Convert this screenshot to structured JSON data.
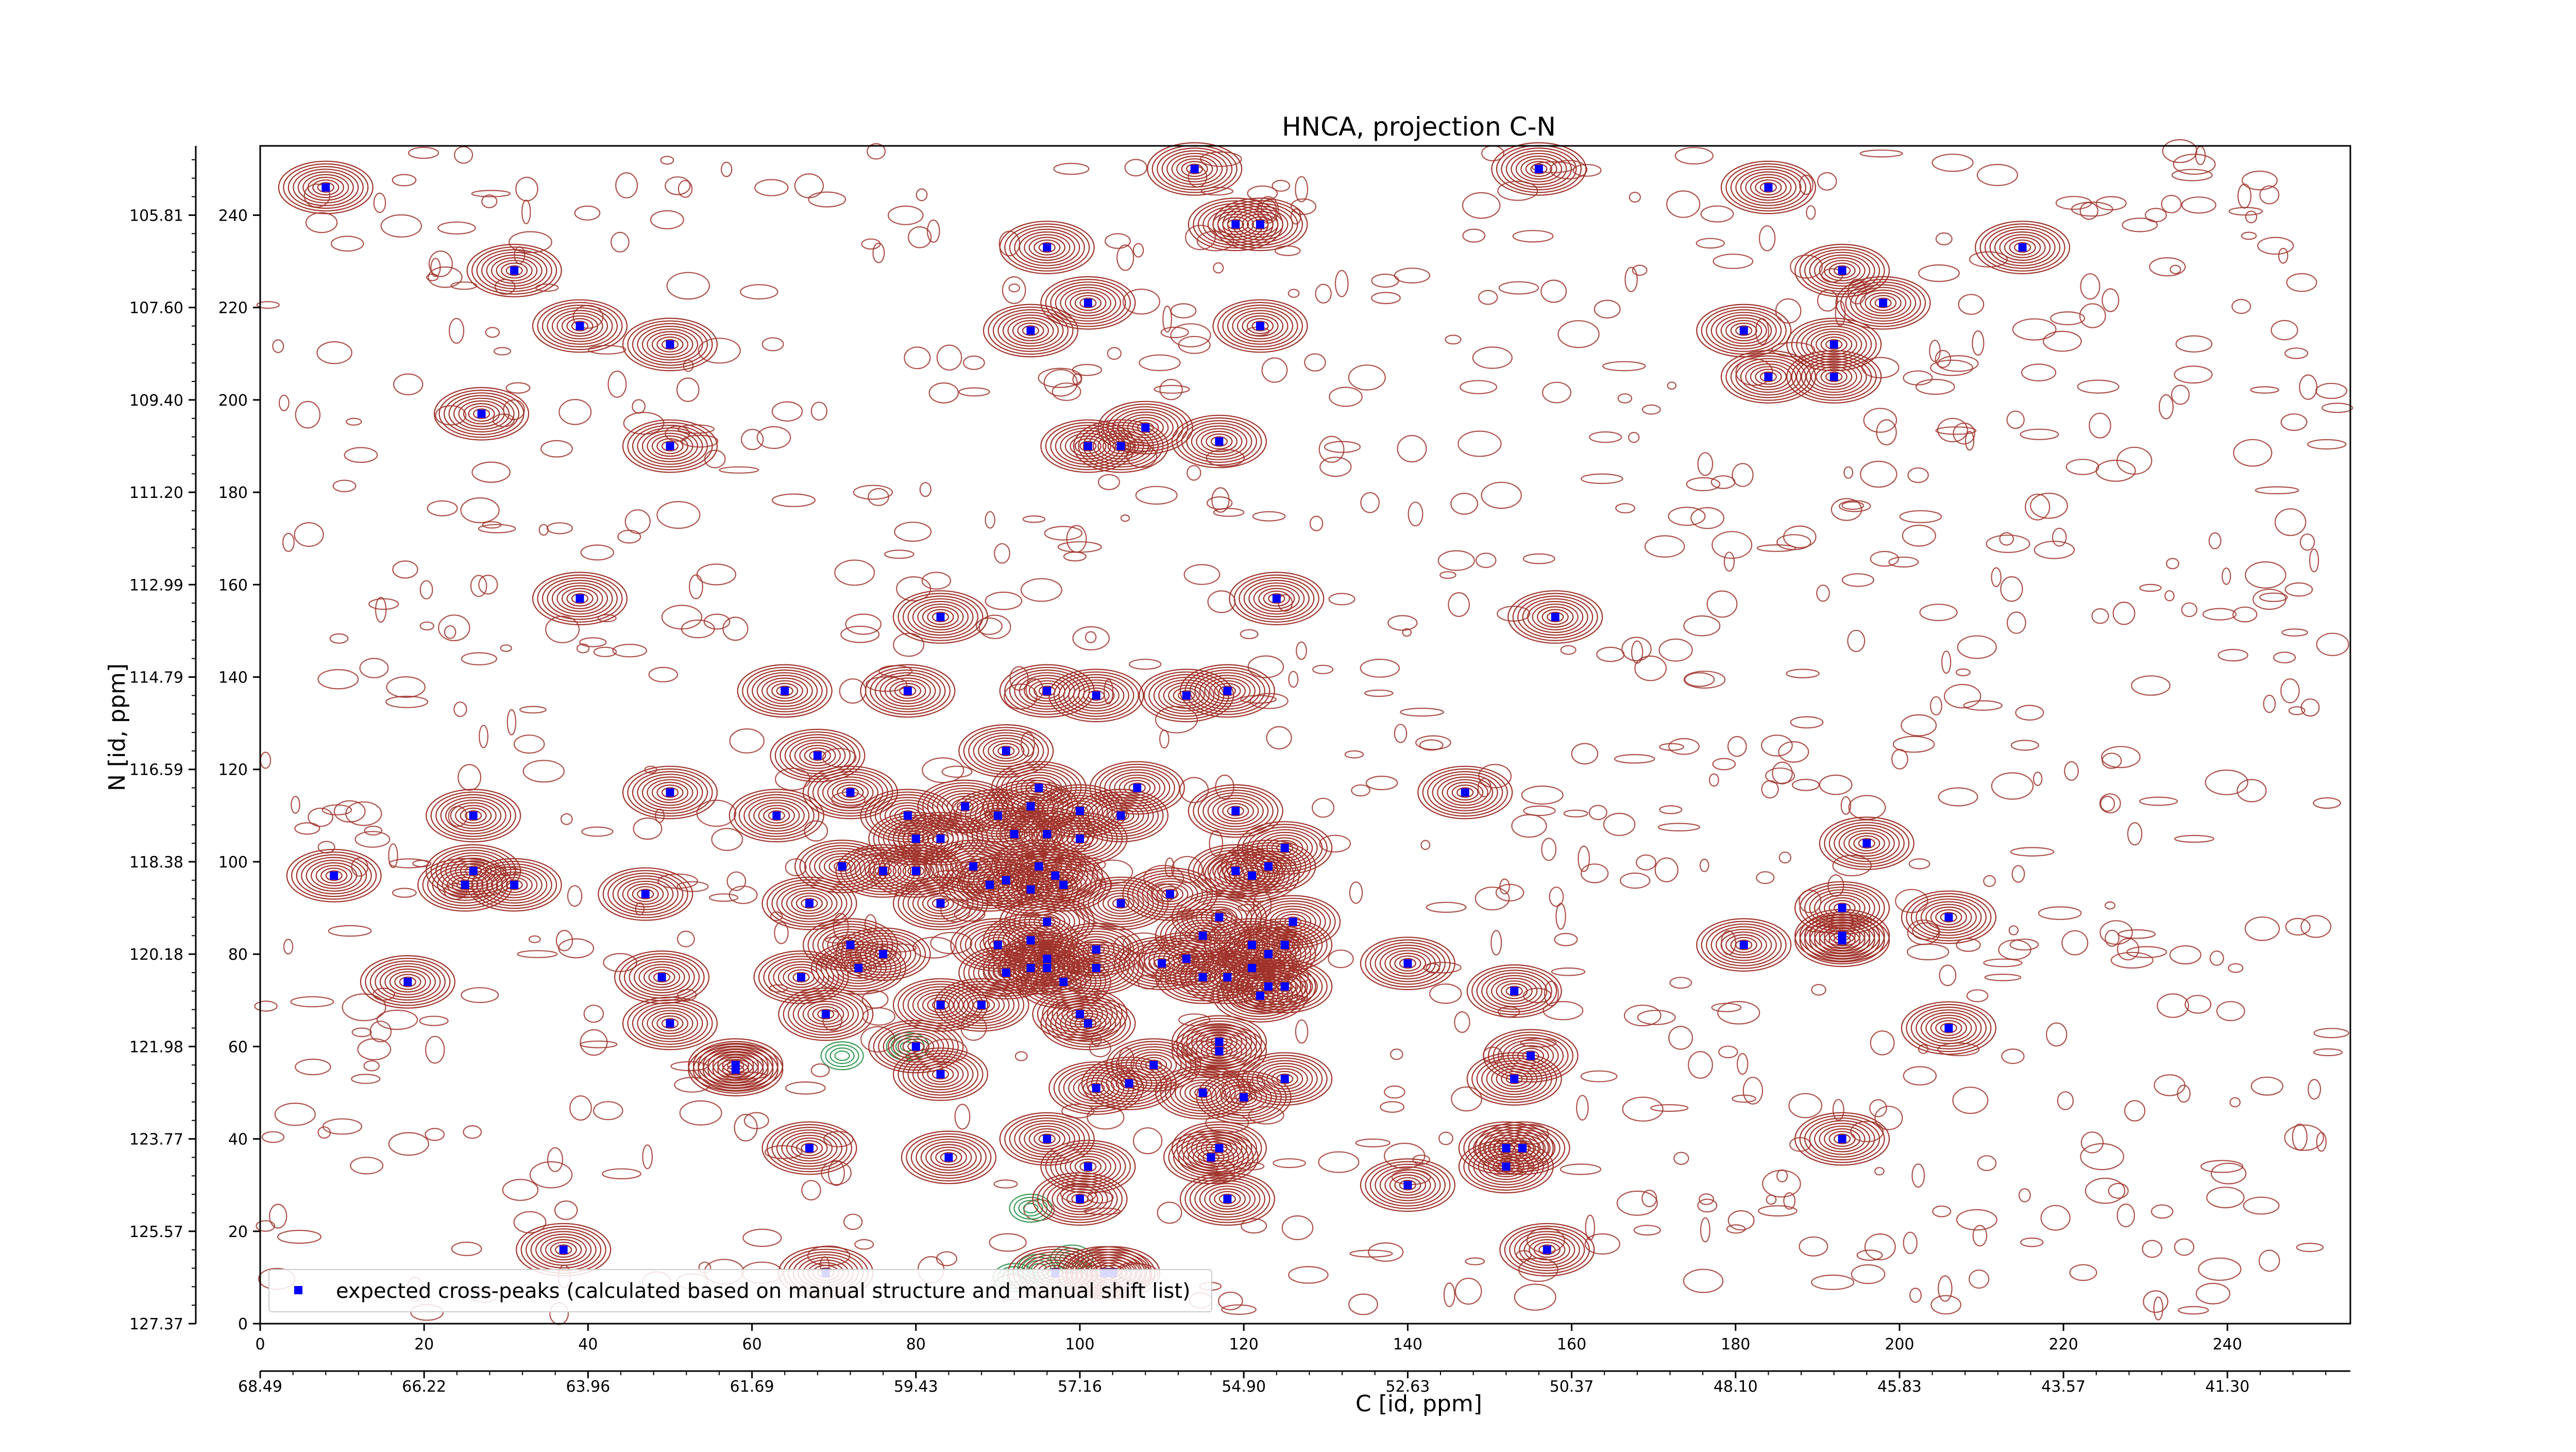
{
  "chart_data": {
    "type": "scatter",
    "title": "HNCA, projection C-N",
    "xlabel_top_axis": "",
    "xlabel": "C [id, ppm]",
    "ylabel": "N [id, ppm]",
    "x_index_ticks": [
      "0",
      "20",
      "40",
      "60",
      "80",
      "100",
      "120",
      "140",
      "160",
      "180",
      "200",
      "220",
      "240"
    ],
    "x_ppm_ticks": [
      "68.49",
      "66.22",
      "63.96",
      "61.69",
      "59.43",
      "57.16",
      "54.90",
      "52.63",
      "50.37",
      "48.10",
      "45.83",
      "43.57",
      "41.30"
    ],
    "y_index_ticks": [
      "0",
      "20",
      "40",
      "60",
      "80",
      "100",
      "120",
      "140",
      "160",
      "180",
      "200",
      "220",
      "240"
    ],
    "y_ppm_ticks": [
      "127.37",
      "125.57",
      "123.77",
      "121.98",
      "120.18",
      "118.38",
      "116.59",
      "114.79",
      "112.99",
      "111.20",
      "109.40",
      "107.60",
      "105.81"
    ],
    "xlim": [
      0,
      255
    ],
    "ylim": [
      0,
      255
    ],
    "contour_colors": {
      "positive": "#a0332b",
      "negative": "#3a9a56"
    },
    "marker_color": "#0000ff",
    "legend": {
      "label": "expected cross-peaks (calculated based on manual structure and manual shift list)",
      "position": "lower-left"
    },
    "series": [
      {
        "name": "expected cross-peaks (calculated based on manual structure and manual shift list)",
        "points": [
          [
            8,
            246
          ],
          [
            114,
            250
          ],
          [
            156,
            250
          ],
          [
            184,
            246
          ],
          [
            119,
            238
          ],
          [
            122,
            238
          ],
          [
            215,
            233
          ],
          [
            96,
            233
          ],
          [
            31,
            228
          ],
          [
            193,
            228
          ],
          [
            101,
            221
          ],
          [
            198,
            221
          ],
          [
            39,
            216
          ],
          [
            94,
            215
          ],
          [
            122,
            216
          ],
          [
            181,
            215
          ],
          [
            50,
            212
          ],
          [
            192,
            212
          ],
          [
            184,
            205
          ],
          [
            192,
            205
          ],
          [
            27,
            197
          ],
          [
            50,
            190
          ],
          [
            101,
            190
          ],
          [
            105,
            190
          ],
          [
            108,
            194
          ],
          [
            117,
            191
          ],
          [
            39,
            157
          ],
          [
            124,
            157
          ],
          [
            83,
            153
          ],
          [
            158,
            153
          ],
          [
            64,
            137
          ],
          [
            79,
            137
          ],
          [
            96,
            137
          ],
          [
            102,
            136
          ],
          [
            113,
            136
          ],
          [
            118,
            137
          ],
          [
            68,
            123
          ],
          [
            91,
            124
          ],
          [
            50,
            115
          ],
          [
            95,
            116
          ],
          [
            107,
            116
          ],
          [
            147,
            115
          ],
          [
            26,
            110
          ],
          [
            63,
            110
          ],
          [
            72,
            115
          ],
          [
            79,
            110
          ],
          [
            86,
            112
          ],
          [
            90,
            110
          ],
          [
            94,
            112
          ],
          [
            100,
            111
          ],
          [
            105,
            110
          ],
          [
            119,
            111
          ],
          [
            80,
            105
          ],
          [
            83,
            105
          ],
          [
            92,
            106
          ],
          [
            96,
            106
          ],
          [
            100,
            105
          ],
          [
            125,
            103
          ],
          [
            196,
            104
          ],
          [
            9,
            97
          ],
          [
            26,
            98
          ],
          [
            25,
            95
          ],
          [
            31,
            95
          ],
          [
            71,
            99
          ],
          [
            76,
            98
          ],
          [
            80,
            98
          ],
          [
            87,
            99
          ],
          [
            95,
            99
          ],
          [
            97,
            97
          ],
          [
            91,
            96
          ],
          [
            89,
            95
          ],
          [
            94,
            94
          ],
          [
            98,
            95
          ],
          [
            111,
            93
          ],
          [
            119,
            98
          ],
          [
            121,
            97
          ],
          [
            123,
            99
          ],
          [
            47,
            93
          ],
          [
            83,
            91
          ],
          [
            67,
            91
          ],
          [
            105,
            91
          ],
          [
            117,
            88
          ],
          [
            126,
            87
          ],
          [
            193,
            90
          ],
          [
            206,
            88
          ],
          [
            96,
            87
          ],
          [
            94,
            83
          ],
          [
            90,
            82
          ],
          [
            102,
            81
          ],
          [
            113,
            79
          ],
          [
            115,
            84
          ],
          [
            121,
            82
          ],
          [
            125,
            82
          ],
          [
            193,
            84
          ],
          [
            193,
            83
          ],
          [
            72,
            82
          ],
          [
            73,
            77
          ],
          [
            66,
            75
          ],
          [
            94,
            77
          ],
          [
            96,
            77
          ],
          [
            96,
            79
          ],
          [
            91,
            76
          ],
          [
            98,
            74
          ],
          [
            102,
            77
          ],
          [
            110,
            78
          ],
          [
            115,
            75
          ],
          [
            121,
            77
          ],
          [
            123,
            80
          ],
          [
            140,
            78
          ],
          [
            181,
            82
          ],
          [
            49,
            75
          ],
          [
            18,
            74
          ],
          [
            118,
            75
          ],
          [
            122,
            71
          ],
          [
            123,
            73
          ],
          [
            125,
            73
          ],
          [
            153,
            72
          ],
          [
            83,
            69
          ],
          [
            88,
            69
          ],
          [
            50,
            65
          ],
          [
            69,
            67
          ],
          [
            100,
            67
          ],
          [
            101,
            65
          ],
          [
            117,
            61
          ],
          [
            117,
            59
          ],
          [
            58,
            55
          ],
          [
            58,
            56
          ],
          [
            83,
            54
          ],
          [
            109,
            56
          ],
          [
            115,
            50
          ],
          [
            120,
            49
          ],
          [
            125,
            53
          ],
          [
            153,
            53
          ],
          [
            155,
            58
          ],
          [
            206,
            64
          ],
          [
            80,
            60
          ],
          [
            102,
            51
          ],
          [
            106,
            52
          ],
          [
            96,
            40
          ],
          [
            101,
            34
          ],
          [
            67,
            38
          ],
          [
            84,
            36
          ],
          [
            117,
            38
          ],
          [
            116,
            36
          ],
          [
            152,
            38
          ],
          [
            154,
            38
          ],
          [
            152,
            34
          ],
          [
            193,
            40
          ],
          [
            100,
            27
          ],
          [
            118,
            27
          ],
          [
            140,
            30
          ],
          [
            37,
            16
          ],
          [
            69,
            11
          ],
          [
            97,
            11
          ],
          [
            103,
            11
          ],
          [
            104,
            11
          ],
          [
            157,
            16
          ],
          [
            76,
            80
          ]
        ]
      }
    ]
  }
}
